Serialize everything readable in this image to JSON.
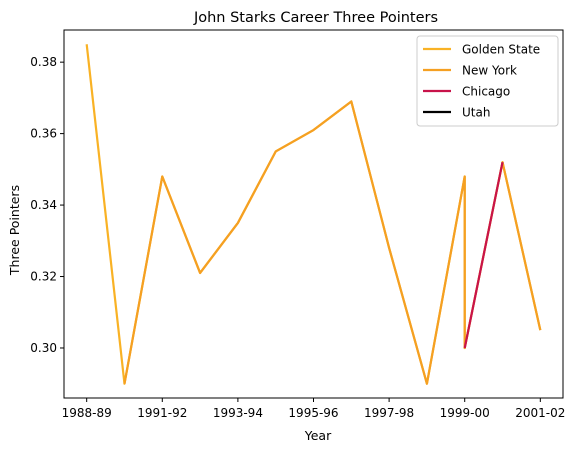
{
  "chart_data": {
    "type": "line",
    "title": "John Starks  Career Three Pointers",
    "xlabel": "Year",
    "ylabel": "Three Pointers",
    "x_tick_labels": [
      "1988-89",
      "1991-92",
      "1993-94",
      "1995-96",
      "1997-98",
      "1999-00",
      "2001-02"
    ],
    "x_tick_positions": [
      0,
      2,
      4,
      6,
      8,
      10,
      12
    ],
    "y_ticks": [
      0.3,
      0.32,
      0.34,
      0.36,
      0.38
    ],
    "xlim": [
      -0.6,
      12.6
    ],
    "ylim": [
      0.286,
      0.389
    ],
    "grid": false,
    "legend_location": "top-right",
    "series": [
      {
        "name": "Golden State",
        "color": "#F9B225",
        "x": [
          0,
          1,
          2,
          3,
          4,
          5,
          6,
          7,
          8,
          9,
          10,
          10,
          11,
          12
        ],
        "y": [
          0.385,
          0.29,
          0.348,
          0.321,
          0.335,
          0.355,
          0.361,
          0.369,
          0.328,
          0.29,
          0.348,
          0.3,
          0.352,
          0.305
        ]
      },
      {
        "name": "New York",
        "color": "#F5A022",
        "x": [
          1,
          2,
          3,
          4,
          5,
          6,
          7,
          8,
          9,
          10,
          10,
          11,
          12
        ],
        "y": [
          0.29,
          0.348,
          0.321,
          0.335,
          0.355,
          0.361,
          0.369,
          0.328,
          0.29,
          0.348,
          0.3,
          0.352,
          0.305
        ]
      },
      {
        "name": "Chicago",
        "color": "#C8134A",
        "x": [
          10,
          11
        ],
        "y": [
          0.3,
          0.352
        ]
      },
      {
        "name": "Utah",
        "color": "#000000",
        "x": [],
        "y": []
      }
    ]
  }
}
